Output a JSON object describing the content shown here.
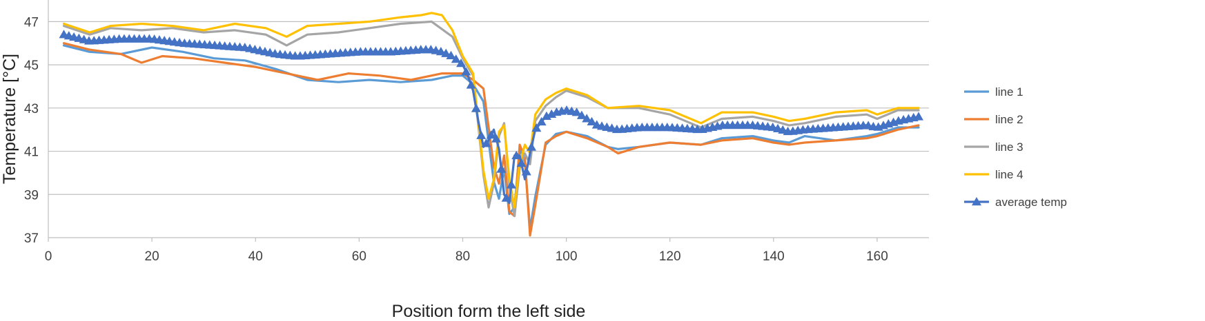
{
  "chart_data": {
    "type": "line",
    "title": "",
    "xlabel": "Position form the left side",
    "ylabel": "Temperature [°C]",
    "xlim": [
      0,
      170
    ],
    "ylim": [
      37,
      48
    ],
    "x_ticks": [
      0,
      20,
      40,
      60,
      80,
      100,
      120,
      140,
      160
    ],
    "y_ticks": [
      37,
      39,
      41,
      43,
      45,
      47
    ],
    "grid": "horizontal",
    "legend_position": "right",
    "series": [
      {
        "name": "line 1",
        "color": "#5B9BD5",
        "marker": "none",
        "x": [
          3,
          8,
          14,
          20,
          26,
          32,
          38,
          44,
          50,
          56,
          62,
          68,
          74,
          78,
          80,
          82,
          84,
          86,
          87,
          88,
          89,
          90,
          91,
          92,
          93,
          94,
          96,
          98,
          100,
          104,
          108,
          110,
          114,
          120,
          126,
          130,
          136,
          140,
          143,
          146,
          152,
          158,
          160,
          164,
          168
        ],
        "y": [
          45.9,
          45.6,
          45.5,
          45.8,
          45.6,
          45.3,
          45.2,
          44.8,
          44.3,
          44.2,
          44.3,
          44.2,
          44.3,
          44.5,
          44.5,
          44.1,
          43.3,
          39.6,
          38.8,
          40.2,
          38.1,
          38.4,
          41.1,
          40.5,
          37.4,
          38.9,
          41.3,
          41.8,
          41.9,
          41.7,
          41.2,
          41.1,
          41.2,
          41.4,
          41.3,
          41.6,
          41.7,
          41.5,
          41.4,
          41.7,
          41.5,
          41.7,
          41.8,
          42.1,
          42.1
        ]
      },
      {
        "name": "line 2",
        "color": "#ED7D31",
        "marker": "none",
        "x": [
          3,
          8,
          14,
          18,
          22,
          28,
          34,
          40,
          46,
          52,
          58,
          64,
          70,
          76,
          80,
          82,
          84,
          86,
          87,
          88,
          89,
          90,
          91,
          92,
          93,
          94,
          96,
          98,
          100,
          104,
          108,
          110,
          114,
          120,
          126,
          130,
          136,
          140,
          143,
          146,
          152,
          158,
          160,
          164,
          168
        ],
        "y": [
          46.0,
          45.7,
          45.5,
          45.1,
          45.4,
          45.3,
          45.1,
          44.9,
          44.6,
          44.3,
          44.6,
          44.5,
          44.3,
          44.6,
          44.6,
          44.3,
          43.9,
          40.3,
          39.5,
          40.8,
          38.2,
          38.0,
          41.3,
          40.7,
          37.1,
          38.5,
          41.4,
          41.7,
          41.9,
          41.6,
          41.2,
          40.9,
          41.2,
          41.4,
          41.3,
          41.5,
          41.6,
          41.4,
          41.3,
          41.4,
          41.5,
          41.6,
          41.7,
          42.0,
          42.2
        ]
      },
      {
        "name": "line 3",
        "color": "#A5A5A5",
        "marker": "none",
        "x": [
          3,
          8,
          12,
          18,
          24,
          30,
          36,
          42,
          46,
          50,
          56,
          62,
          68,
          74,
          78,
          80,
          82,
          84,
          85,
          86,
          87,
          88,
          89,
          90,
          91,
          92,
          93,
          94,
          96,
          98,
          100,
          104,
          108,
          114,
          120,
          124,
          126,
          130,
          136,
          140,
          143,
          146,
          152,
          158,
          160,
          164,
          168
        ],
        "y": [
          46.8,
          46.4,
          46.7,
          46.6,
          46.7,
          46.5,
          46.6,
          46.4,
          45.9,
          46.4,
          46.5,
          46.7,
          46.9,
          47.0,
          46.3,
          45.3,
          44.5,
          39.9,
          38.4,
          39.5,
          41.7,
          42.3,
          39.4,
          38.0,
          40.2,
          40.9,
          40.4,
          42.4,
          43.1,
          43.5,
          43.8,
          43.5,
          43.0,
          43.0,
          42.7,
          42.3,
          42.1,
          42.5,
          42.6,
          42.4,
          42.2,
          42.3,
          42.6,
          42.7,
          42.5,
          42.9,
          42.9
        ]
      },
      {
        "name": "line 4",
        "color": "#FFC000",
        "marker": "none",
        "x": [
          3,
          8,
          12,
          18,
          24,
          30,
          36,
          42,
          46,
          50,
          56,
          62,
          68,
          72,
          74,
          76,
          78,
          80,
          82,
          84,
          85,
          86,
          87,
          88,
          89,
          90,
          91,
          92,
          93,
          94,
          96,
          98,
          100,
          104,
          108,
          114,
          120,
          124,
          126,
          130,
          136,
          140,
          143,
          146,
          152,
          158,
          160,
          164,
          168
        ],
        "y": [
          46.9,
          46.5,
          46.8,
          46.9,
          46.8,
          46.6,
          46.9,
          46.7,
          46.3,
          46.8,
          46.9,
          47.0,
          47.2,
          47.3,
          47.4,
          47.3,
          46.6,
          45.4,
          44.6,
          40.1,
          38.8,
          39.7,
          41.9,
          42.2,
          39.7,
          38.4,
          40.4,
          41.3,
          40.9,
          42.7,
          43.4,
          43.7,
          43.9,
          43.6,
          43.0,
          43.1,
          42.9,
          42.5,
          42.3,
          42.8,
          42.8,
          42.6,
          42.4,
          42.5,
          42.8,
          42.9,
          42.7,
          43.0,
          43.0
        ]
      },
      {
        "name": "average temp",
        "color": "#4472C4",
        "marker": "triangle",
        "x": [
          3,
          8,
          14,
          20,
          26,
          32,
          38,
          44,
          48,
          54,
          60,
          66,
          72,
          74,
          76,
          78,
          80,
          81,
          82,
          83,
          84,
          85,
          86,
          87,
          88,
          89,
          90,
          91,
          92,
          93,
          94,
          96,
          98,
          100,
          102,
          104,
          106,
          110,
          114,
          120,
          126,
          130,
          136,
          140,
          143,
          146,
          152,
          158,
          160,
          164,
          168
        ],
        "y": [
          46.4,
          46.1,
          46.2,
          46.2,
          46.0,
          45.9,
          45.8,
          45.5,
          45.4,
          45.5,
          45.6,
          45.6,
          45.7,
          45.7,
          45.6,
          45.4,
          45.0,
          44.5,
          43.8,
          42.4,
          41.2,
          41.5,
          42.0,
          41.1,
          39.0,
          38.6,
          40.8,
          40.8,
          39.7,
          40.9,
          42.0,
          42.6,
          42.8,
          42.9,
          42.8,
          42.5,
          42.2,
          42.0,
          42.1,
          42.1,
          42.0,
          42.2,
          42.2,
          42.1,
          41.9,
          42.0,
          42.1,
          42.2,
          42.1,
          42.4,
          42.6
        ]
      }
    ]
  }
}
